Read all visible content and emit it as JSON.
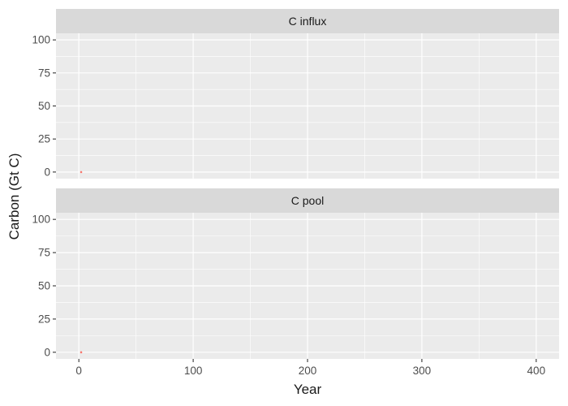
{
  "chart_data": {
    "type": "scatter",
    "xlabel": "Year",
    "ylabel": "Carbon (Gt C)",
    "xlim": [
      -20,
      420
    ],
    "ylim": [
      -5,
      105
    ],
    "x_ticks": [
      0,
      100,
      200,
      300,
      400
    ],
    "y_ticks": [
      0,
      25,
      50,
      75,
      100
    ],
    "grid": true,
    "facets": [
      {
        "title": "C influx",
        "series": [
          {
            "color": "#F8766D",
            "points": [
              {
                "x": 2,
                "y": 0
              }
            ]
          }
        ]
      },
      {
        "title": "C pool",
        "series": [
          {
            "color": "#F8766D",
            "points": [
              {
                "x": 2,
                "y": 0
              }
            ]
          }
        ]
      }
    ]
  }
}
